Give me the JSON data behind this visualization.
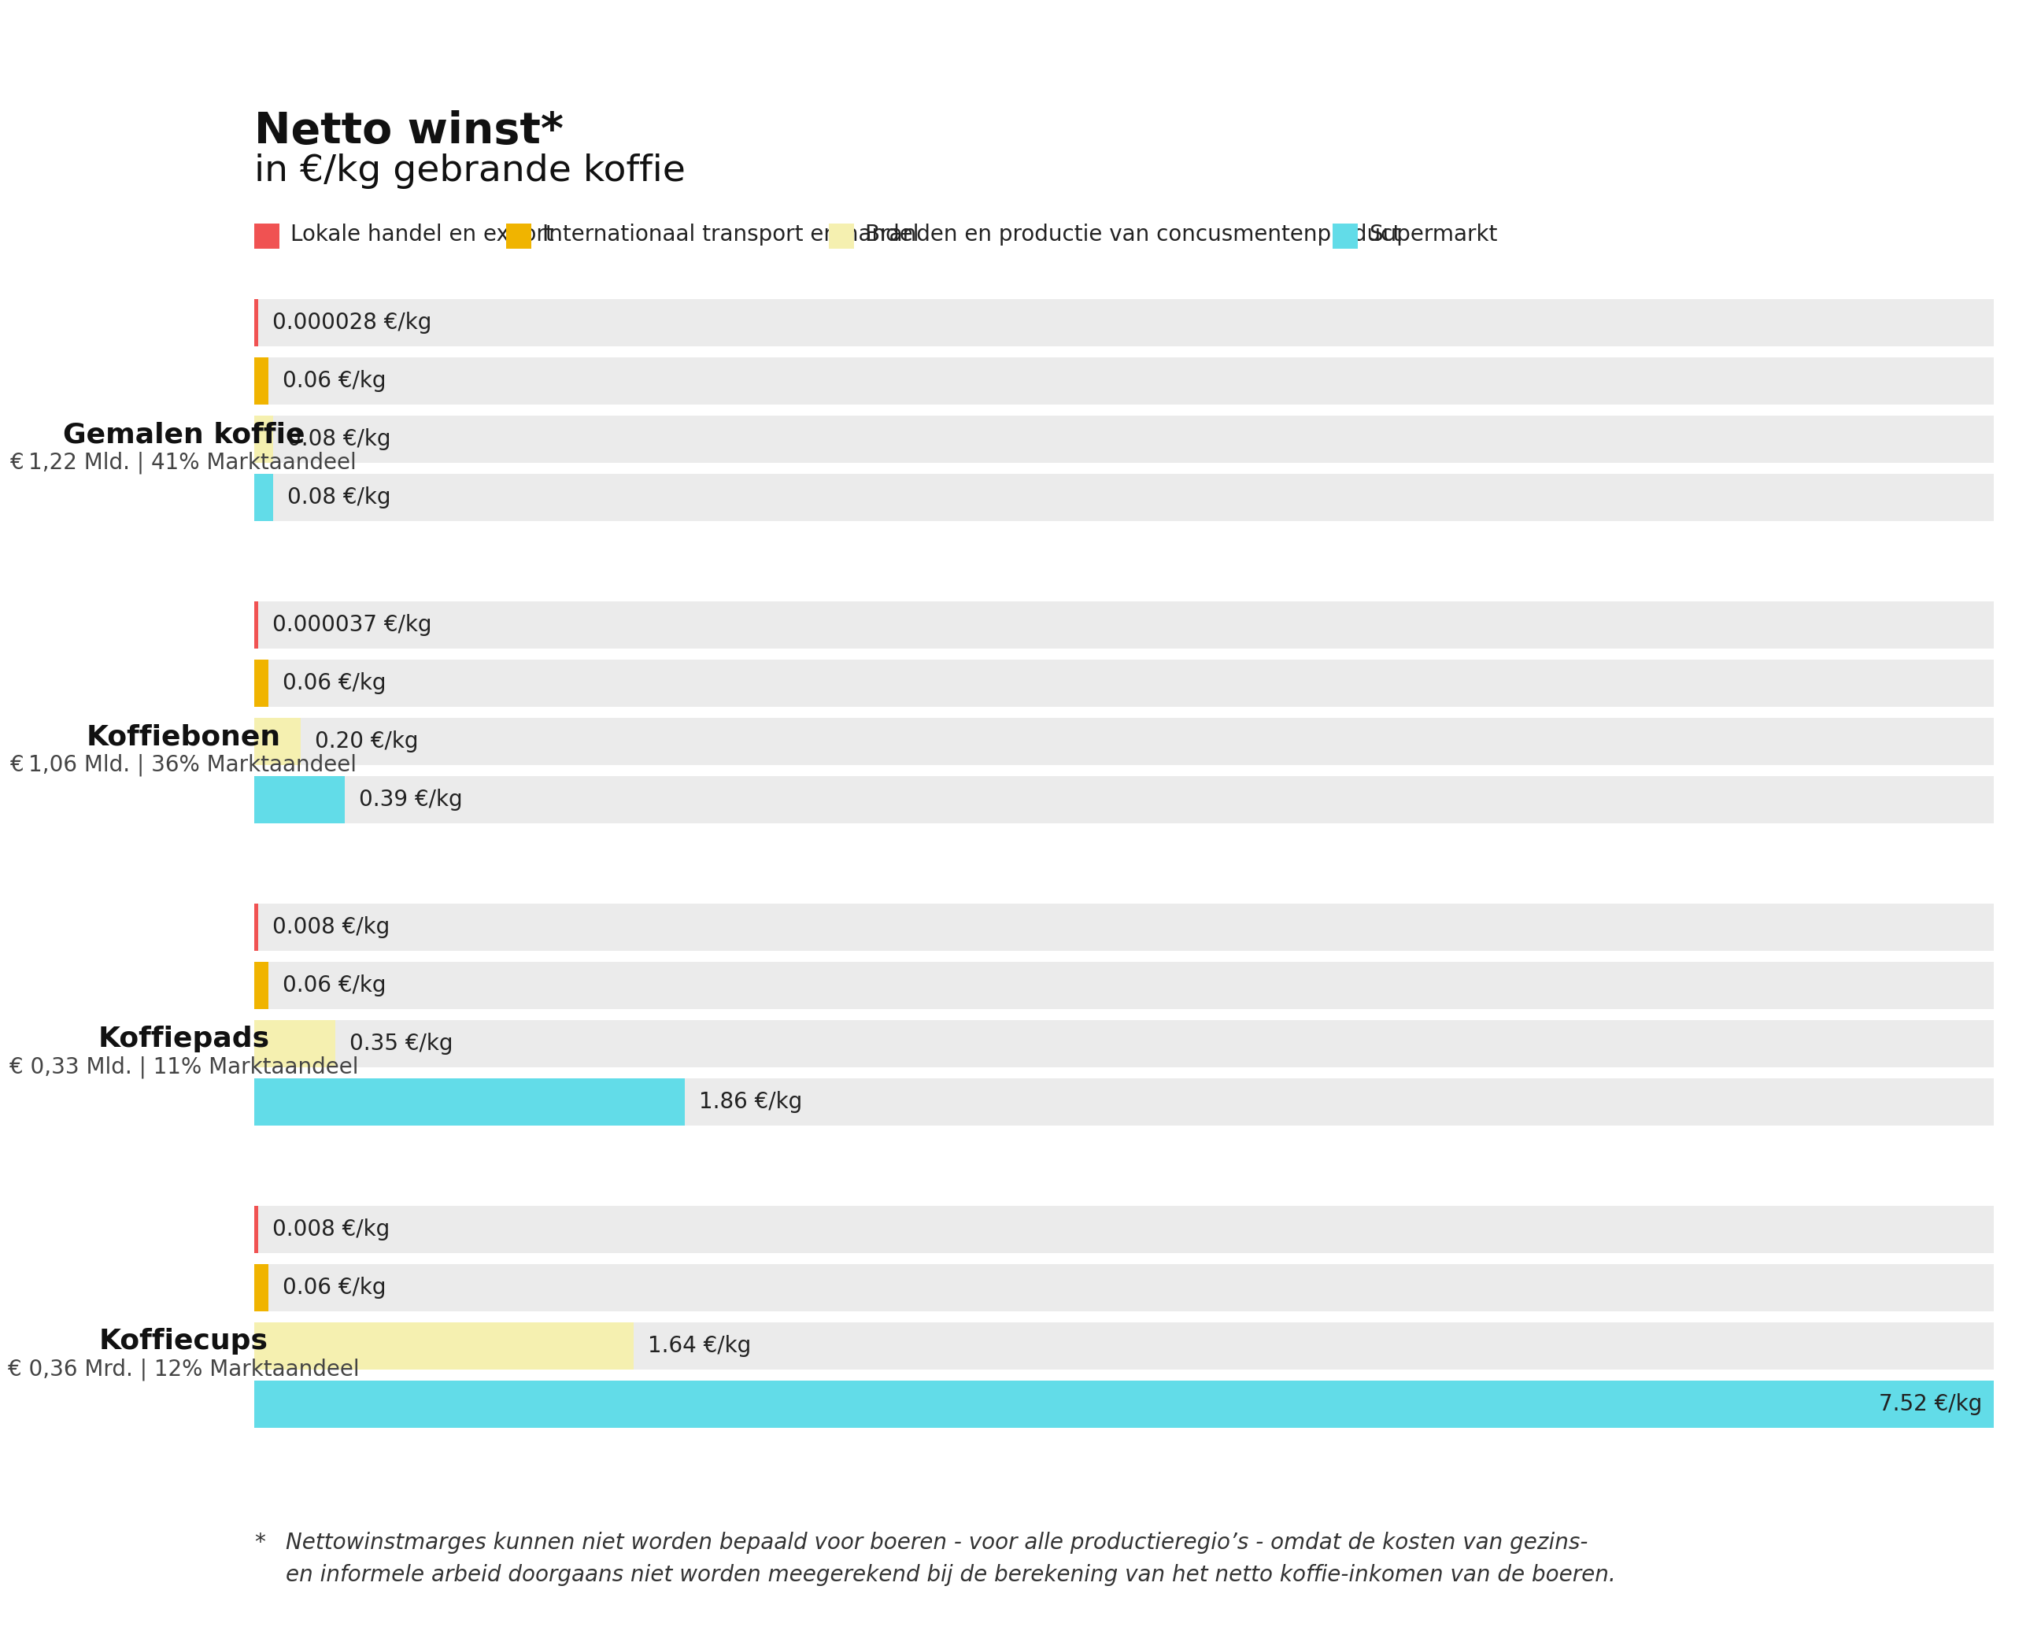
{
  "title_line1": "Netto winst*",
  "title_line2": "in €/kg gebrande koffie",
  "background_color": "#ffffff",
  "bar_bg_color": "#ebebeb",
  "legend_items": [
    {
      "label": "Lokale handel en export",
      "color": "#f05252"
    },
    {
      "label": "Internationaal transport en handel",
      "color": "#f0b400"
    },
    {
      "label": "Branden en productie van concusmentenproduct",
      "color": "#f5f0b0"
    },
    {
      "label": "Supermarkt",
      "color": "#62dce8"
    }
  ],
  "products": [
    {
      "name": "Gemalen koffie",
      "subtitle": "€ 1,22 Mld. | 41% Marktaandeel",
      "bars": [
        {
          "value": 2.8e-05,
          "label": "0.000028 €/kg",
          "color": "#f05252"
        },
        {
          "value": 0.06,
          "label": "0.06 €/kg",
          "color": "#f0b400"
        },
        {
          "value": 0.08,
          "label": "0.08 €/kg",
          "color": "#f5f0b0"
        },
        {
          "value": 0.08,
          "label": "0.08 €/kg",
          "color": "#62dce8"
        }
      ]
    },
    {
      "name": "Koffiebonen",
      "subtitle": "€ 1,06 Mld. | 36% Marktaandeel",
      "bars": [
        {
          "value": 3.7e-05,
          "label": "0.000037 €/kg",
          "color": "#f05252"
        },
        {
          "value": 0.06,
          "label": "0.06 €/kg",
          "color": "#f0b400"
        },
        {
          "value": 0.2,
          "label": "0.20 €/kg",
          "color": "#f5f0b0"
        },
        {
          "value": 0.39,
          "label": "0.39 €/kg",
          "color": "#62dce8"
        }
      ]
    },
    {
      "name": "Koffiepads",
      "subtitle": "€ 0,33 Mld. | 11% Marktaandeel",
      "bars": [
        {
          "value": 0.008,
          "label": "0.008 €/kg",
          "color": "#f05252"
        },
        {
          "value": 0.06,
          "label": "0.06 €/kg",
          "color": "#f0b400"
        },
        {
          "value": 0.35,
          "label": "0.35 €/kg",
          "color": "#f5f0b0"
        },
        {
          "value": 1.86,
          "label": "1.86 €/kg",
          "color": "#62dce8"
        }
      ]
    },
    {
      "name": "Koffiecups",
      "subtitle": "€ 0,36 Mrd. | 12% Marktaandeel",
      "bars": [
        {
          "value": 0.008,
          "label": "0.008 €/kg",
          "color": "#f05252"
        },
        {
          "value": 0.06,
          "label": "0.06 €/kg",
          "color": "#f0b400"
        },
        {
          "value": 1.64,
          "label": "1.64 €/kg",
          "color": "#f5f0b0"
        },
        {
          "value": 7.52,
          "label": "7.52 €/kg",
          "color": "#62dce8"
        }
      ]
    }
  ],
  "footnote_star": "*",
  "footnote_text": "Nettowinstmarges kunnen niet worden bepaald voor boeren - voor alle productieregio’s - omdat de kosten van gezins-\nen informele arbeid doorgaans niet worden meegerekend bij de berekening van het netto koffie-inkomen van de boeren.",
  "max_bar_value": 7.52
}
